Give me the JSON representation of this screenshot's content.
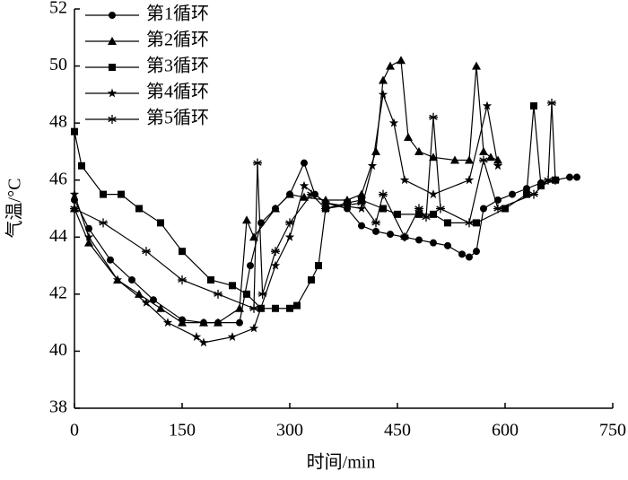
{
  "chart_data": {
    "type": "line",
    "xlabel": "时间/min",
    "ylabel": "气温/°C",
    "xlim": [
      0,
      750
    ],
    "xticks": [
      0,
      150,
      300,
      450,
      600,
      750
    ],
    "ylim": [
      38,
      52
    ],
    "yticks": [
      38,
      40,
      42,
      44,
      46,
      48,
      50,
      52
    ],
    "legend": "upper left",
    "series": [
      {
        "name": "第1循环",
        "color": "#000000",
        "marker": "circle",
        "x": [
          0,
          20,
          50,
          80,
          110,
          150,
          180,
          200,
          230,
          245,
          260,
          280,
          300,
          320,
          335,
          350,
          380,
          400,
          420,
          440,
          460,
          480,
          500,
          520,
          540,
          550,
          560,
          570,
          590,
          610,
          630,
          650,
          670,
          690,
          700
        ],
        "values": [
          45.3,
          44.3,
          43.2,
          42.5,
          41.8,
          41.1,
          41.0,
          41.0,
          41.0,
          43.0,
          44.5,
          45.0,
          45.5,
          46.6,
          45.5,
          45.2,
          45.0,
          44.4,
          44.2,
          44.1,
          44.0,
          43.9,
          43.8,
          43.7,
          43.4,
          43.3,
          43.5,
          45.0,
          45.3,
          45.5,
          45.7,
          45.9,
          46.0,
          46.1,
          46.1
        ]
      },
      {
        "name": "第2循环",
        "color": "#000000",
        "marker": "triangle",
        "x": [
          0,
          20,
          60,
          90,
          120,
          150,
          180,
          200,
          230,
          240,
          250,
          280,
          300,
          320,
          350,
          380,
          400,
          420,
          430,
          440,
          455,
          465,
          480,
          500,
          530,
          550,
          560,
          570,
          580,
          590
        ],
        "values": [
          45.0,
          43.8,
          42.5,
          42.0,
          41.5,
          41.0,
          41.0,
          41.0,
          41.5,
          44.6,
          44.0,
          45.0,
          45.5,
          45.4,
          45.3,
          45.3,
          45.5,
          47.0,
          49.5,
          50.0,
          50.2,
          47.5,
          47.0,
          46.8,
          46.7,
          46.7,
          50.0,
          47.0,
          46.8,
          46.7
        ]
      },
      {
        "name": "第3循环",
        "color": "#000000",
        "marker": "square",
        "x": [
          0,
          10,
          40,
          65,
          90,
          120,
          150,
          190,
          220,
          240,
          260,
          280,
          300,
          310,
          330,
          340,
          350,
          380,
          400,
          430,
          450,
          480,
          500,
          520,
          560,
          600,
          630,
          640,
          650,
          670
        ],
        "values": [
          47.7,
          46.5,
          45.5,
          45.5,
          45.0,
          44.5,
          43.5,
          42.5,
          42.3,
          42.0,
          41.5,
          41.5,
          41.5,
          41.6,
          42.5,
          43.0,
          45.0,
          45.2,
          45.3,
          45.0,
          44.8,
          44.8,
          44.8,
          44.5,
          44.5,
          45.0,
          45.5,
          48.6,
          45.8,
          46.0
        ]
      },
      {
        "name": "第4循环",
        "color": "#000000",
        "marker": "star",
        "x": [
          0,
          20,
          60,
          100,
          130,
          170,
          180,
          220,
          250,
          280,
          300,
          320,
          350,
          400,
          415,
          430,
          445,
          460,
          500,
          550,
          575,
          590
        ],
        "values": [
          45.5,
          44.0,
          42.5,
          41.7,
          41.0,
          40.5,
          40.3,
          40.5,
          40.8,
          43.0,
          44.0,
          45.8,
          45.2,
          45.0,
          46.5,
          49.0,
          48.0,
          46.0,
          45.5,
          46.0,
          48.6,
          46.5
        ]
      },
      {
        "name": "第5循环",
        "color": "#000000",
        "marker": "asterisk",
        "x": [
          0,
          40,
          100,
          150,
          200,
          250,
          255,
          262,
          280,
          300,
          330,
          350,
          400,
          420,
          430,
          460,
          480,
          490,
          500,
          510,
          550,
          570,
          590,
          640,
          660,
          665,
          670
        ],
        "values": [
          45.0,
          44.5,
          43.5,
          42.5,
          42.0,
          41.5,
          46.6,
          42.0,
          43.5,
          44.5,
          45.5,
          45.0,
          45.2,
          44.5,
          45.5,
          44.0,
          45.0,
          44.7,
          48.2,
          45.0,
          44.5,
          46.7,
          45.0,
          45.5,
          46.0,
          48.7,
          46.0
        ]
      }
    ]
  }
}
